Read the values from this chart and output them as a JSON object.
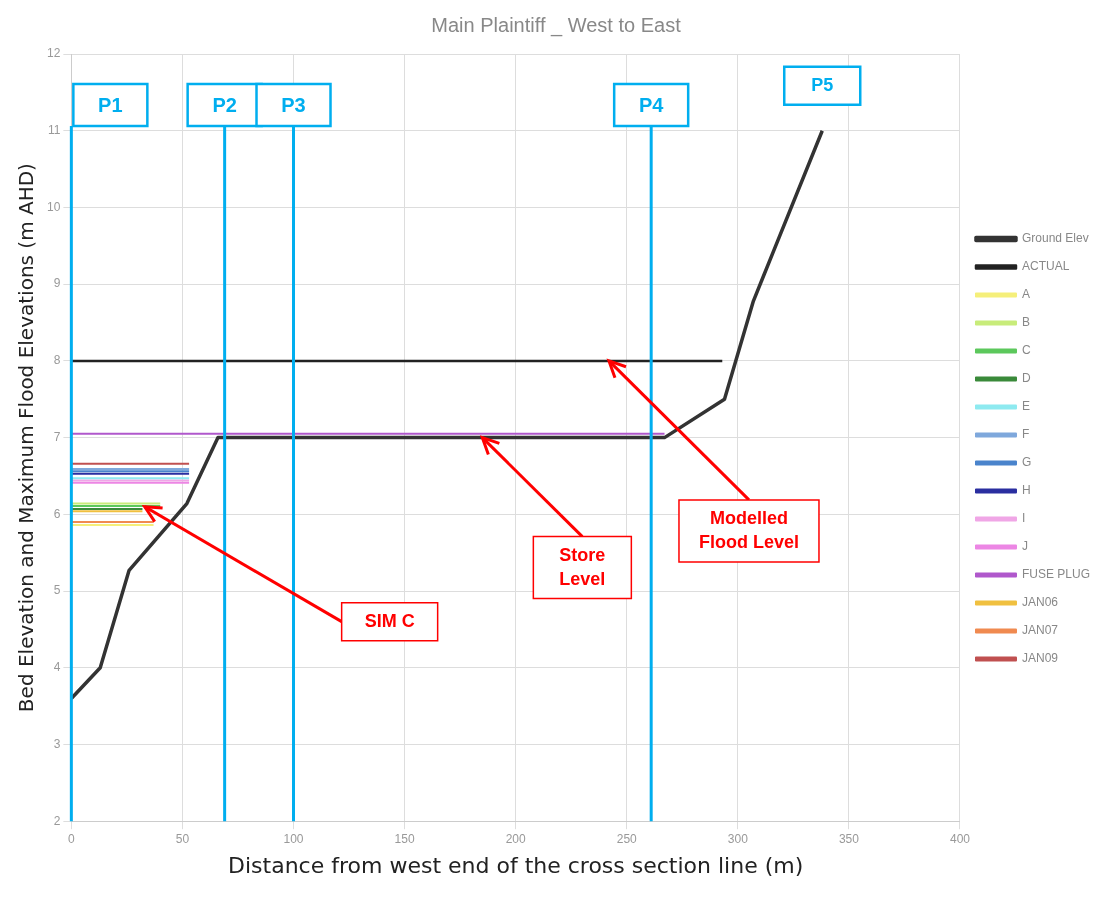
{
  "chart_data": {
    "type": "line",
    "title": "Main Plaintiff _ West to East",
    "xlabel": "Distance from west end of the cross section line (m)",
    "ylabel": "Bed Elevation and Maximum Flood Elevations (m AHD)",
    "xlim": [
      0,
      400
    ],
    "xticks": [
      0,
      50,
      100,
      150,
      200,
      250,
      300,
      350,
      400
    ],
    "ylim": [
      2,
      12
    ],
    "yticks": [
      2,
      3,
      4,
      5,
      6,
      7,
      8,
      9,
      10,
      11,
      12
    ],
    "grid": true,
    "legend": "right",
    "marker": "none",
    "line_style": "solid",
    "series": [
      {
        "name": "Ground Elev",
        "color": "#333333",
        "x": [
          0,
          13,
          26,
          52,
          66,
          267,
          294,
          307,
          338
        ],
        "values": [
          3.6,
          4.0,
          5.27,
          6.14,
          7.0,
          7.0,
          7.5,
          8.78,
          11.0
        ]
      },
      {
        "name": "ACTUAL",
        "color": "#222222",
        "x": [
          0,
          293
        ],
        "values": [
          8.0,
          8.0
        ]
      },
      {
        "name": "A",
        "color": "#f5ef7a",
        "x": [
          0,
          37
        ],
        "values": [
          5.86,
          5.86
        ]
      },
      {
        "name": "B",
        "color": "#c8ec7a",
        "x": [
          0,
          40
        ],
        "values": [
          6.14,
          6.14
        ]
      },
      {
        "name": "C",
        "color": "#5cc85c",
        "x": [
          0,
          40
        ],
        "values": [
          6.11,
          6.11
        ]
      },
      {
        "name": "D",
        "color": "#3a8a3a",
        "x": [
          0,
          32
        ],
        "values": [
          6.07,
          6.07
        ]
      },
      {
        "name": "E",
        "color": "#8eeaf0",
        "x": [
          0,
          53
        ],
        "values": [
          6.47,
          6.47
        ]
      },
      {
        "name": "F",
        "color": "#7fa8dc",
        "x": [
          0,
          53
        ],
        "values": [
          6.59,
          6.59
        ]
      },
      {
        "name": "G",
        "color": "#4a84cc",
        "x": [
          0,
          53
        ],
        "values": [
          6.56,
          6.56
        ]
      },
      {
        "name": "H",
        "color": "#2a2ea0",
        "x": [
          0,
          53
        ],
        "values": [
          6.53,
          6.53
        ]
      },
      {
        "name": "I",
        "color": "#f0a6e6",
        "x": [
          0,
          53
        ],
        "values": [
          6.44,
          6.44
        ]
      },
      {
        "name": "J",
        "color": "#ec86e4",
        "x": [
          0,
          53
        ],
        "values": [
          6.41,
          6.41
        ]
      },
      {
        "name": "FUSE PLUG",
        "color": "#b058cc",
        "x": [
          0,
          267
        ],
        "values": [
          7.05,
          7.05
        ]
      },
      {
        "name": "JAN06",
        "color": "#f0c040",
        "x": [
          0,
          32
        ],
        "values": [
          6.04,
          6.04
        ]
      },
      {
        "name": "JAN07",
        "color": "#f08a50",
        "x": [
          0,
          37
        ],
        "values": [
          5.9,
          5.9
        ]
      },
      {
        "name": "JAN09",
        "color": "#c05050",
        "x": [
          0,
          53
        ],
        "values": [
          6.66,
          6.66
        ]
      }
    ],
    "ref_lines": [
      {
        "axis": "x",
        "value": 0,
        "label": "P1",
        "color": "#00aeef"
      },
      {
        "axis": "x",
        "value": 69,
        "label": "P2",
        "color": "#00aeef"
      },
      {
        "axis": "x",
        "value": 100,
        "label": "P3",
        "color": "#00aeef"
      },
      {
        "axis": "x",
        "value": 261,
        "label": "P4",
        "color": "#00aeef"
      }
    ],
    "annotations": [
      {
        "text": "P5",
        "x": 338,
        "y": 11.0
      },
      {
        "text": "SIM C",
        "x": 33,
        "y": 6.1
      },
      {
        "text": "Store Level",
        "x": 185,
        "y": 7.0
      },
      {
        "text": "Modelled Flood Level",
        "x": 242,
        "y": 8.0
      }
    ]
  }
}
